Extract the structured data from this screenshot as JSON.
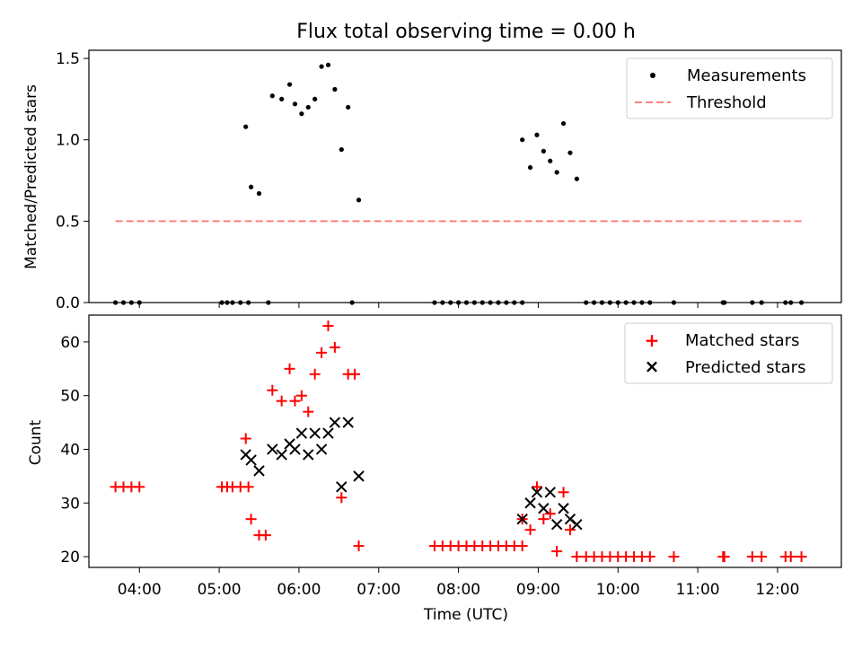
{
  "title": "Flux total observing time = 0.00 h",
  "chart_data": [
    {
      "type": "scatter",
      "ylabel": "Matched/Predicted stars",
      "xlabel": "",
      "ylim": [
        0,
        1.55
      ],
      "yticks": [
        0.0,
        0.5,
        1.0,
        1.5
      ],
      "ytick_labels": [
        "0.0",
        "0.5",
        "1.0",
        "1.5"
      ],
      "x_tick_labels_shown": false,
      "legend_position": "top-right",
      "series": [
        {
          "name": "Measurements",
          "color": "#000000",
          "marker": "dot",
          "points": [
            [
              "03:42",
              0
            ],
            [
              "03:48",
              0
            ],
            [
              "03:54",
              0
            ],
            [
              "04:00",
              0
            ],
            [
              "05:02",
              0
            ],
            [
              "05:06",
              0
            ],
            [
              "05:10",
              0
            ],
            [
              "05:16",
              0
            ],
            [
              "05:22",
              0
            ],
            [
              "05:20",
              1.08
            ],
            [
              "05:24",
              0.71
            ],
            [
              "05:30",
              0.67
            ],
            [
              "05:37",
              0
            ],
            [
              "05:40",
              1.27
            ],
            [
              "05:47",
              1.25
            ],
            [
              "05:53",
              1.34
            ],
            [
              "05:57",
              1.22
            ],
            [
              "06:02",
              1.16
            ],
            [
              "06:07",
              1.2
            ],
            [
              "06:12",
              1.25
            ],
            [
              "06:17",
              1.45
            ],
            [
              "06:22",
              1.46
            ],
            [
              "06:27",
              1.31
            ],
            [
              "06:32",
              0.94
            ],
            [
              "06:37",
              1.2
            ],
            [
              "06:40",
              0
            ],
            [
              "06:45",
              0.63
            ],
            [
              "07:42",
              0
            ],
            [
              "07:48",
              0
            ],
            [
              "07:54",
              0
            ],
            [
              "08:00",
              0
            ],
            [
              "08:06",
              0
            ],
            [
              "08:12",
              0
            ],
            [
              "08:18",
              0
            ],
            [
              "08:24",
              0
            ],
            [
              "08:30",
              0
            ],
            [
              "08:36",
              0
            ],
            [
              "08:42",
              0
            ],
            [
              "08:48",
              0
            ],
            [
              "08:48",
              1.0
            ],
            [
              "08:54",
              0.83
            ],
            [
              "08:59",
              1.03
            ],
            [
              "09:04",
              0.93
            ],
            [
              "09:09",
              0.87
            ],
            [
              "09:14",
              0.8
            ],
            [
              "09:19",
              1.1
            ],
            [
              "09:24",
              0.92
            ],
            [
              "09:29",
              0.76
            ],
            [
              "09:36",
              0
            ],
            [
              "09:42",
              0
            ],
            [
              "09:48",
              0
            ],
            [
              "09:54",
              0
            ],
            [
              "10:00",
              0
            ],
            [
              "10:06",
              0
            ],
            [
              "10:12",
              0
            ],
            [
              "10:18",
              0
            ],
            [
              "10:24",
              0
            ],
            [
              "10:42",
              0
            ],
            [
              "11:19",
              0
            ],
            [
              "11:20",
              0
            ],
            [
              "11:41",
              0
            ],
            [
              "11:48",
              0
            ],
            [
              "12:06",
              0
            ],
            [
              "12:10",
              0
            ],
            [
              "12:18",
              0
            ]
          ]
        },
        {
          "name": "Threshold",
          "color": "#ff7f7f",
          "style": "dashed",
          "points": [
            [
              "03:42",
              0.5
            ],
            [
              "12:18",
              0.5
            ]
          ]
        }
      ]
    },
    {
      "type": "scatter",
      "ylabel": "Count",
      "xlabel": "Time (UTC)",
      "ylim": [
        18,
        65
      ],
      "yticks": [
        20,
        30,
        40,
        50,
        60
      ],
      "ytick_labels": [
        "20",
        "30",
        "40",
        "50",
        "60"
      ],
      "xticks": [
        "04:00",
        "05:00",
        "06:00",
        "07:00",
        "08:00",
        "09:00",
        "10:00",
        "11:00",
        "12:00"
      ],
      "xlim": [
        "03:22",
        "12:48"
      ],
      "legend_position": "top-right",
      "series": [
        {
          "name": "Matched stars",
          "color": "#ff0000",
          "marker": "plus",
          "points": [
            [
              "03:42",
              33
            ],
            [
              "03:48",
              33
            ],
            [
              "03:54",
              33
            ],
            [
              "04:00",
              33
            ],
            [
              "05:02",
              33
            ],
            [
              "05:06",
              33
            ],
            [
              "05:10",
              33
            ],
            [
              "05:16",
              33
            ],
            [
              "05:22",
              33
            ],
            [
              "05:20",
              42
            ],
            [
              "05:24",
              27
            ],
            [
              "05:30",
              24
            ],
            [
              "05:35",
              24
            ],
            [
              "05:40",
              51
            ],
            [
              "05:47",
              49
            ],
            [
              "05:53",
              55
            ],
            [
              "05:57",
              49
            ],
            [
              "06:02",
              50
            ],
            [
              "06:07",
              47
            ],
            [
              "06:12",
              54
            ],
            [
              "06:17",
              58
            ],
            [
              "06:22",
              63
            ],
            [
              "06:27",
              59
            ],
            [
              "06:32",
              31
            ],
            [
              "06:37",
              54
            ],
            [
              "06:42",
              54
            ],
            [
              "06:45",
              22
            ],
            [
              "07:42",
              22
            ],
            [
              "07:48",
              22
            ],
            [
              "07:54",
              22
            ],
            [
              "08:00",
              22
            ],
            [
              "08:06",
              22
            ],
            [
              "08:12",
              22
            ],
            [
              "08:18",
              22
            ],
            [
              "08:24",
              22
            ],
            [
              "08:30",
              22
            ],
            [
              "08:36",
              22
            ],
            [
              "08:42",
              22
            ],
            [
              "08:48",
              22
            ],
            [
              "08:48",
              27
            ],
            [
              "08:54",
              25
            ],
            [
              "08:59",
              33
            ],
            [
              "09:04",
              27
            ],
            [
              "09:09",
              28
            ],
            [
              "09:14",
              21
            ],
            [
              "09:19",
              32
            ],
            [
              "09:24",
              25
            ],
            [
              "09:29",
              20
            ],
            [
              "09:36",
              20
            ],
            [
              "09:42",
              20
            ],
            [
              "09:48",
              20
            ],
            [
              "09:54",
              20
            ],
            [
              "10:00",
              20
            ],
            [
              "10:06",
              20
            ],
            [
              "10:12",
              20
            ],
            [
              "10:18",
              20
            ],
            [
              "10:24",
              20
            ],
            [
              "10:42",
              20
            ],
            [
              "11:19",
              20
            ],
            [
              "11:20",
              20
            ],
            [
              "11:41",
              20
            ],
            [
              "11:48",
              20
            ],
            [
              "12:06",
              20
            ],
            [
              "12:10",
              20
            ],
            [
              "12:18",
              20
            ]
          ]
        },
        {
          "name": "Predicted stars",
          "color": "#000000",
          "marker": "x",
          "points": [
            [
              "05:20",
              39
            ],
            [
              "05:24",
              38
            ],
            [
              "05:30",
              36
            ],
            [
              "05:40",
              40
            ],
            [
              "05:47",
              39
            ],
            [
              "05:53",
              41
            ],
            [
              "05:57",
              40
            ],
            [
              "06:02",
              43
            ],
            [
              "06:07",
              39
            ],
            [
              "06:12",
              43
            ],
            [
              "06:17",
              40
            ],
            [
              "06:22",
              43
            ],
            [
              "06:27",
              45
            ],
            [
              "06:32",
              33
            ],
            [
              "06:37",
              45
            ],
            [
              "06:45",
              35
            ],
            [
              "08:48",
              27
            ],
            [
              "08:54",
              30
            ],
            [
              "08:59",
              32
            ],
            [
              "09:04",
              29
            ],
            [
              "09:09",
              32
            ],
            [
              "09:14",
              26
            ],
            [
              "09:19",
              29
            ],
            [
              "09:24",
              27
            ],
            [
              "09:29",
              26
            ]
          ]
        }
      ]
    }
  ]
}
